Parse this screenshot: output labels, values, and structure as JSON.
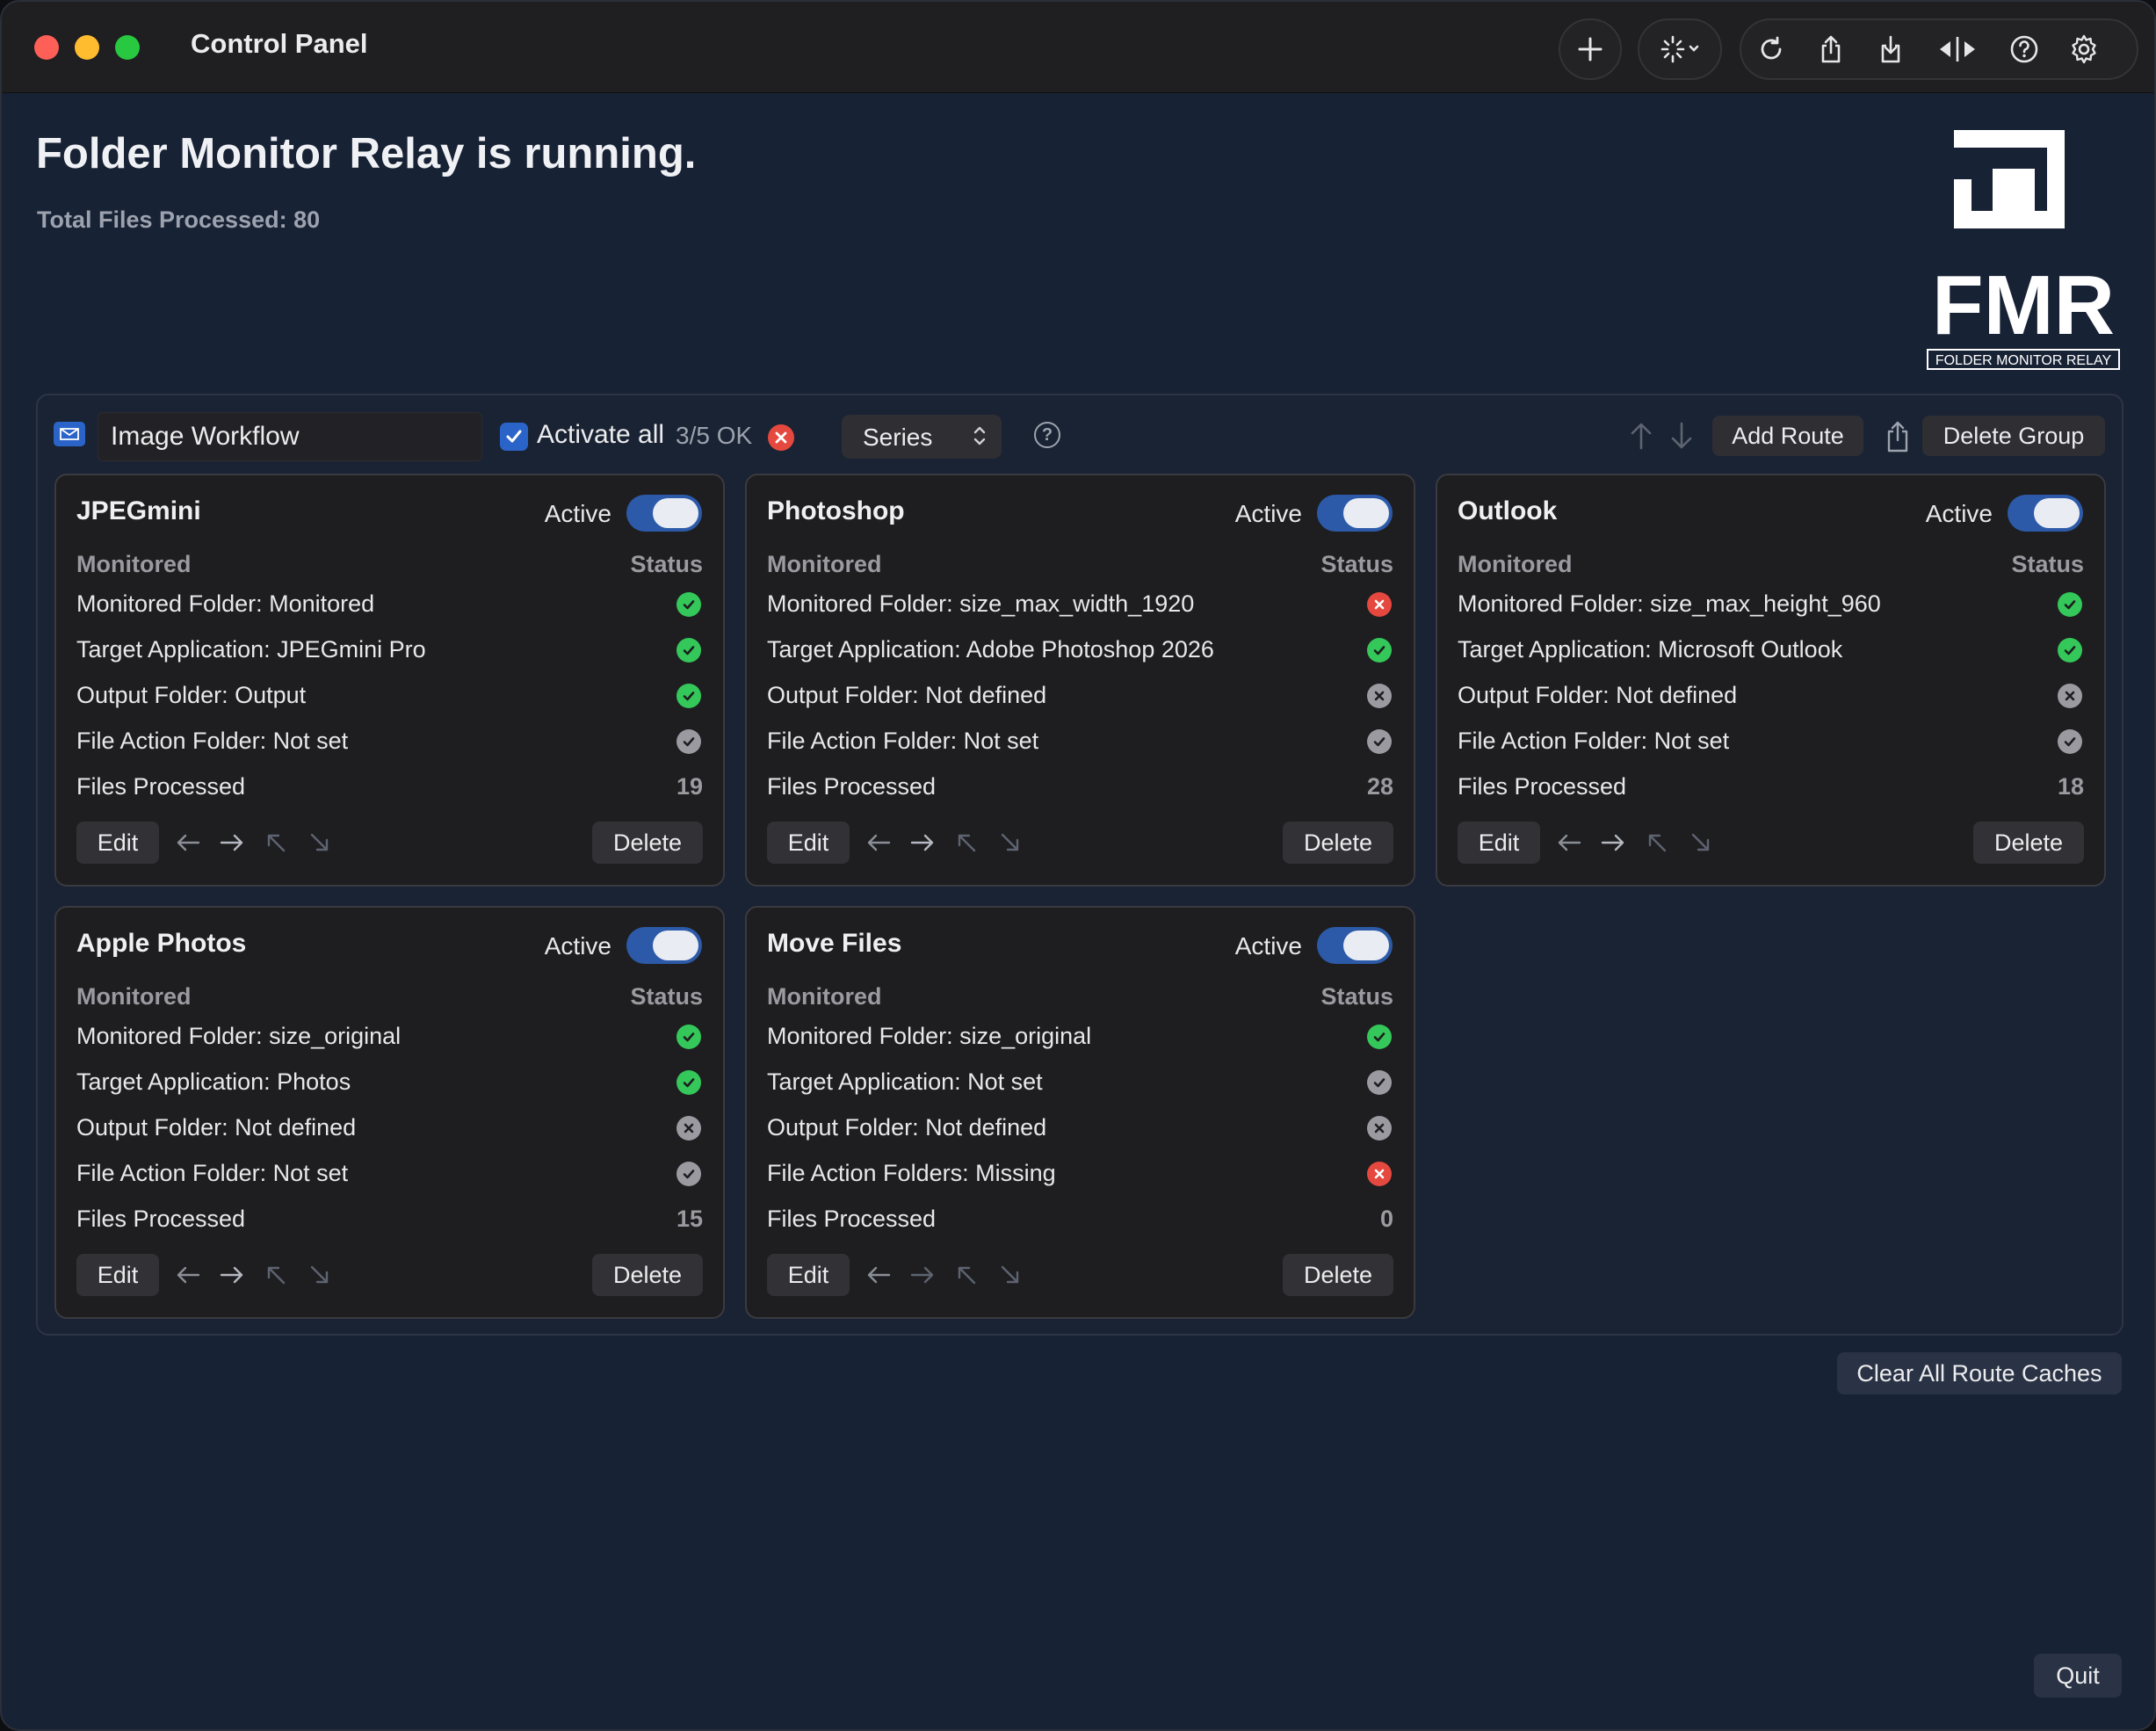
{
  "window": {
    "title": "Control Panel"
  },
  "header": {
    "headline": "Folder Monitor Relay is running.",
    "total": "Total Files Processed: 80"
  },
  "logo": {
    "mark": "FMR",
    "tagline": "FOLDER MONITOR RELAY"
  },
  "group": {
    "name": "Image Workflow",
    "activate_all_label": "Activate all",
    "ok_count": "3/5 OK",
    "mode": "Series",
    "add_route": "Add Route",
    "delete_group": "Delete Group"
  },
  "cards": [
    {
      "title": "JPEGmini",
      "active_label": "Active",
      "active": true,
      "hdr_left": "Monitored",
      "hdr_right": "Status",
      "rows": [
        {
          "label": "Monitored Folder: Monitored",
          "status": "ok"
        },
        {
          "label": "Target Application: JPEGmini Pro",
          "status": "ok"
        },
        {
          "label": "Output Folder: Output",
          "status": "ok"
        },
        {
          "label": "File Action Folder: Not set",
          "status": "grey"
        }
      ],
      "files_label": "Files Processed",
      "files_count": "19",
      "edit": "Edit",
      "delete": "Delete"
    },
    {
      "title": "Photoshop",
      "active_label": "Active",
      "active": true,
      "hdr_left": "Monitored",
      "hdr_right": "Status",
      "rows": [
        {
          "label": "Monitored Folder: size_max_width_1920",
          "status": "err"
        },
        {
          "label": "Target Application: Adobe Photoshop 2026",
          "status": "ok"
        },
        {
          "label": "Output Folder: Not defined",
          "status": "x"
        },
        {
          "label": "File Action Folder: Not set",
          "status": "grey"
        }
      ],
      "files_label": "Files Processed",
      "files_count": "28",
      "edit": "Edit",
      "delete": "Delete"
    },
    {
      "title": "Outlook",
      "active_label": "Active",
      "active": true,
      "hdr_left": "Monitored",
      "hdr_right": "Status",
      "rows": [
        {
          "label": "Monitored Folder: size_max_height_960",
          "status": "ok"
        },
        {
          "label": "Target Application: Microsoft Outlook",
          "status": "ok"
        },
        {
          "label": "Output Folder: Not defined",
          "status": "x"
        },
        {
          "label": "File Action Folder: Not set",
          "status": "grey"
        }
      ],
      "files_label": "Files Processed",
      "files_count": "18",
      "edit": "Edit",
      "delete": "Delete"
    },
    {
      "title": "Apple Photos",
      "active_label": "Active",
      "active": true,
      "hdr_left": "Monitored",
      "hdr_right": "Status",
      "rows": [
        {
          "label": "Monitored Folder: size_original",
          "status": "ok"
        },
        {
          "label": "Target Application: Photos",
          "status": "ok"
        },
        {
          "label": "Output Folder: Not defined",
          "status": "x"
        },
        {
          "label": "File Action Folder: Not set",
          "status": "grey"
        }
      ],
      "files_label": "Files Processed",
      "files_count": "15",
      "edit": "Edit",
      "delete": "Delete"
    },
    {
      "title": "Move Files",
      "active_label": "Active",
      "active": true,
      "hdr_left": "Monitored",
      "hdr_right": "Status",
      "rows": [
        {
          "label": "Monitored Folder: size_original",
          "status": "ok"
        },
        {
          "label": "Target Application: Not set",
          "status": "grey"
        },
        {
          "label": "Output Folder: Not defined",
          "status": "x"
        },
        {
          "label": "File Action Folders: Missing",
          "status": "err"
        }
      ],
      "files_label": "Files Processed",
      "files_count": "0",
      "edit": "Edit",
      "delete": "Delete"
    }
  ],
  "footer": {
    "clear_caches": "Clear All Route Caches",
    "quit": "Quit"
  },
  "colors": {
    "accent": "#2b64c8",
    "ok": "#34c759",
    "error": "#e5483f",
    "neutral": "#9a9aa0",
    "background": "#182235"
  },
  "toolbar_icons": [
    "plus-icon",
    "magic-wand-icon",
    "refresh-icon",
    "export-icon",
    "import-icon",
    "split-view-icon",
    "help-icon",
    "settings-gear-icon"
  ]
}
